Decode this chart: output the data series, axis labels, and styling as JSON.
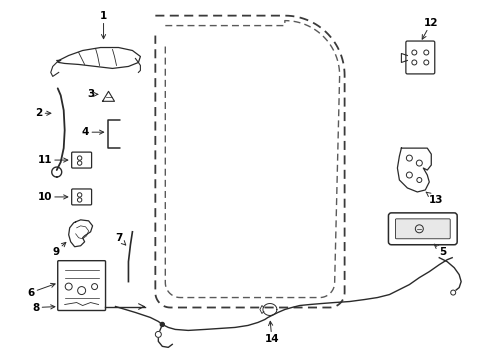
{
  "background_color": "#ffffff",
  "fig_width": 4.89,
  "fig_height": 3.6,
  "dpi": 100,
  "line_color": "#2a2a2a",
  "label_fontsize": 7.5
}
